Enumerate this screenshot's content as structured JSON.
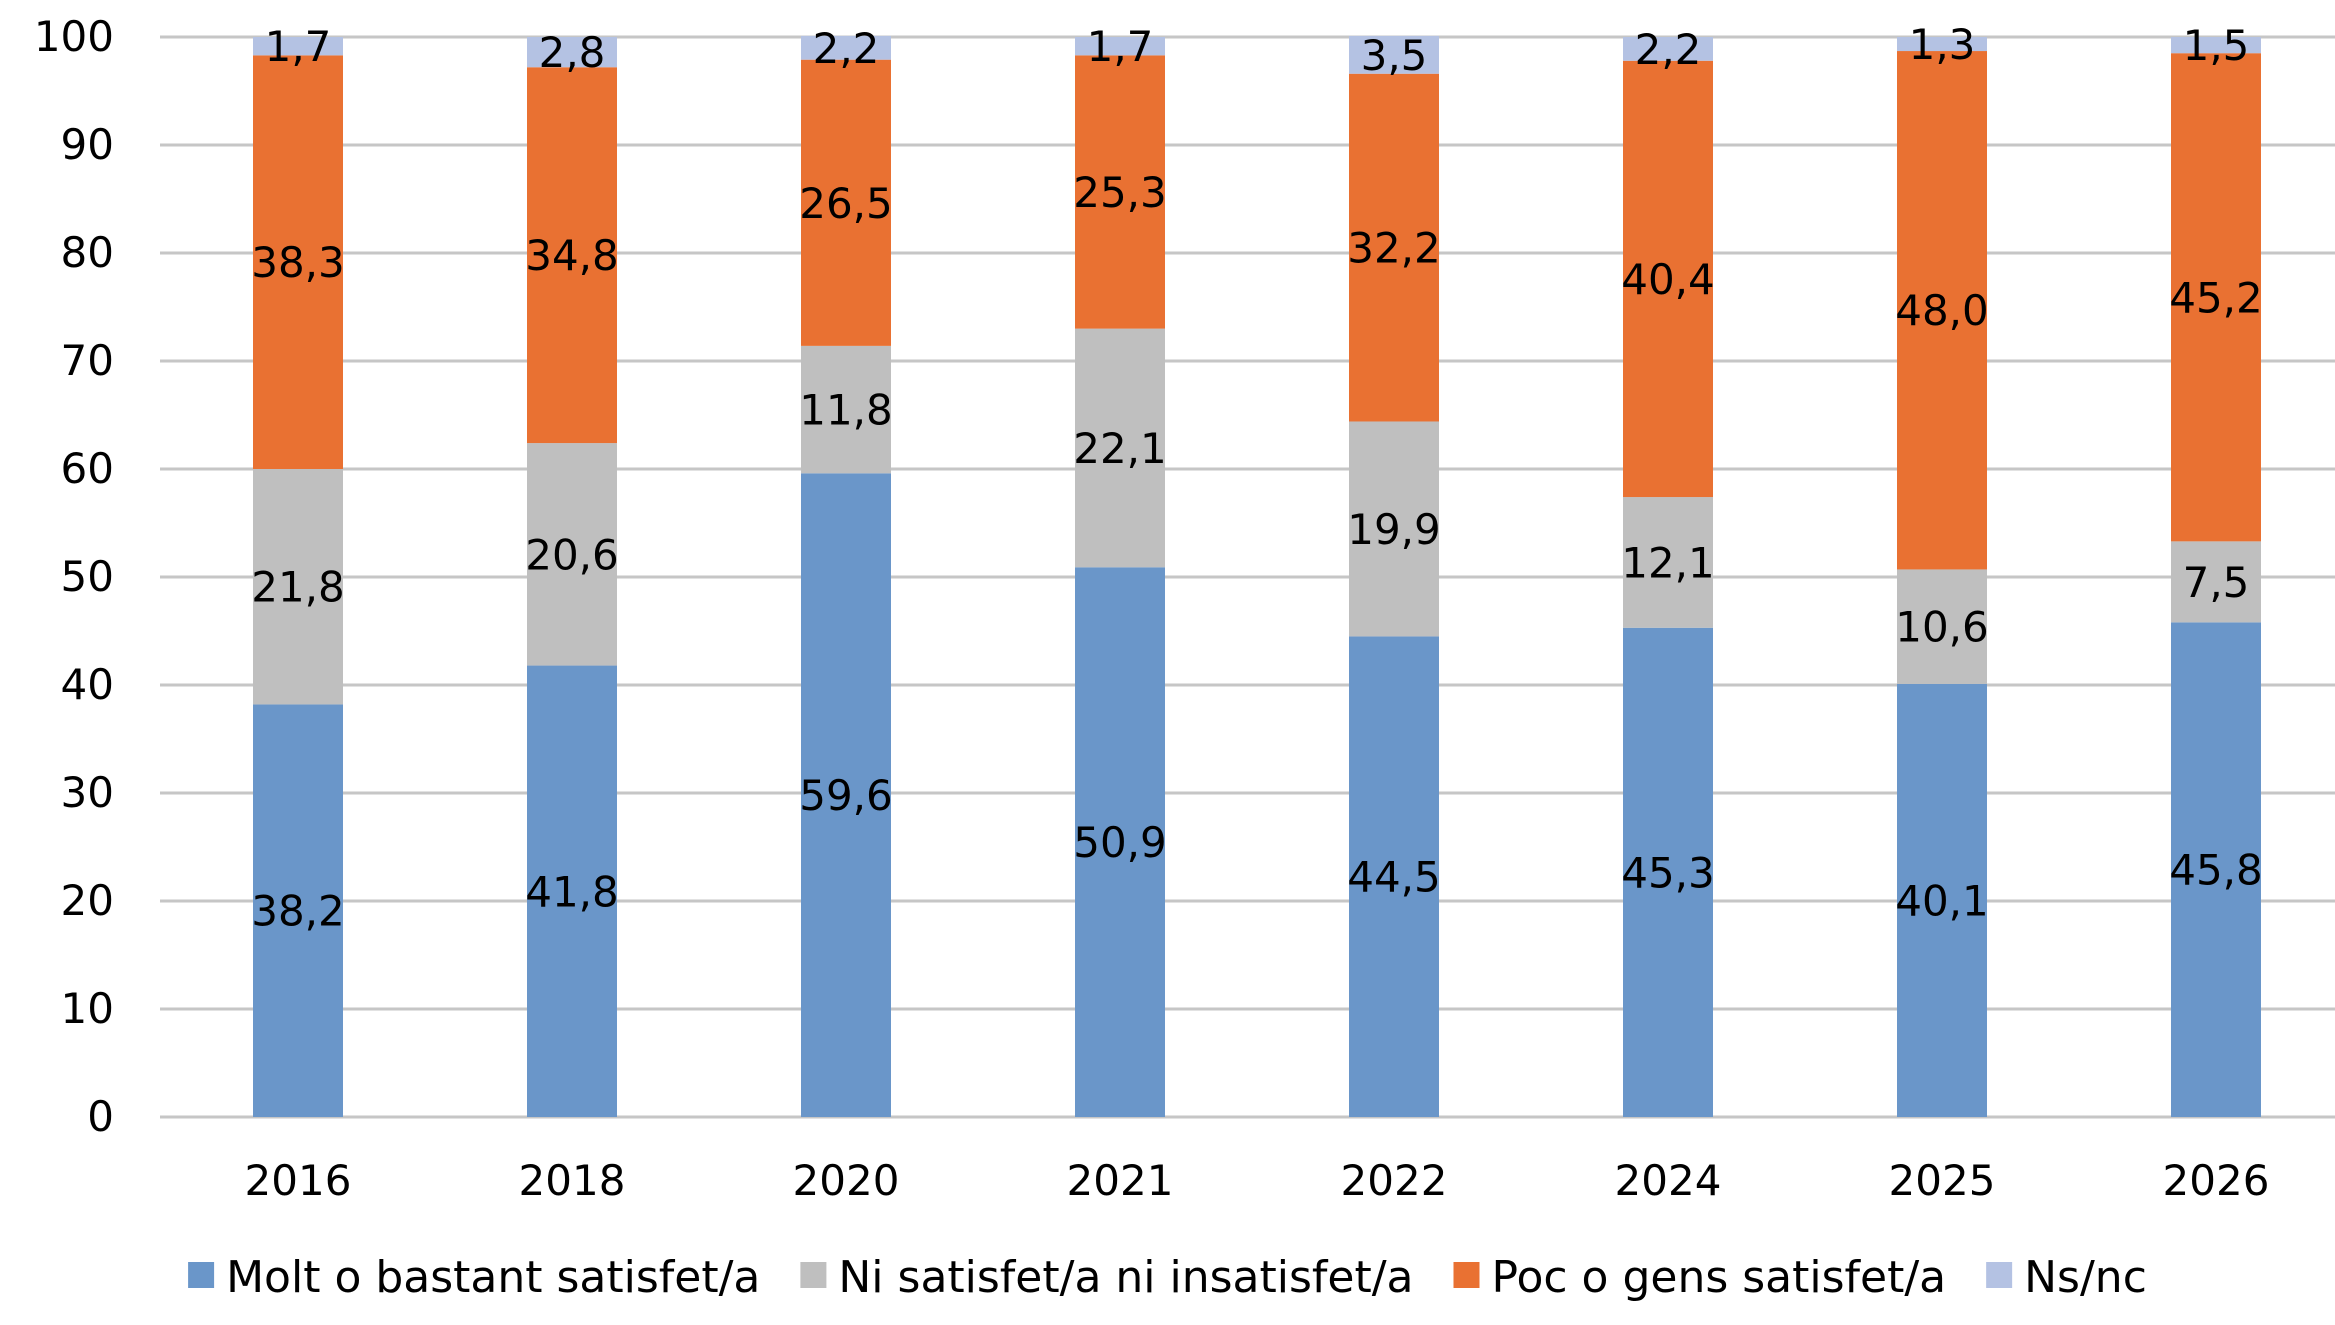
{
  "chart_data": {
    "type": "bar",
    "stacked": true,
    "categories": [
      "2016",
      "2018",
      "2020",
      "2021",
      "2022",
      "2024",
      "2025",
      "2026"
    ],
    "series": [
      {
        "name": "Molt o bastant satisfet/a",
        "color": "#6a96c9",
        "values": [
          38.2,
          41.8,
          59.6,
          50.9,
          44.5,
          45.3,
          40.1,
          45.8
        ],
        "labels": [
          "38,2",
          "41,8",
          "59,6",
          "50,9",
          "44,5",
          "45,3",
          "40,1",
          "45,8"
        ]
      },
      {
        "name": "Ni satisfet/a ni insatisfet/a",
        "color": "#bfbfbf",
        "values": [
          21.8,
          20.6,
          11.8,
          22.1,
          19.9,
          12.1,
          10.6,
          7.5
        ],
        "labels": [
          "21,8",
          "20,6",
          "11,8",
          "22,1",
          "19,9",
          "12,1",
          "10,6",
          "7,5"
        ]
      },
      {
        "name": "Poc o gens satisfet/a",
        "color": "#e97132",
        "values": [
          38.3,
          34.8,
          26.5,
          25.3,
          32.2,
          40.4,
          48.0,
          45.2
        ],
        "labels": [
          "38,3",
          "34,8",
          "26,5",
          "25,3",
          "32,2",
          "40,4",
          "48,0",
          "45,2"
        ]
      },
      {
        "name": "Ns/nc",
        "color": "#b4c2e3",
        "values": [
          1.7,
          2.8,
          2.2,
          1.7,
          3.5,
          2.2,
          1.3,
          1.5
        ],
        "labels": [
          "1,7",
          "2,8",
          "2,2",
          "1,7",
          "3,5",
          "2,2",
          "1,3",
          "1,5"
        ]
      }
    ],
    "ylim": [
      0,
      100
    ],
    "yticks": [
      "0",
      "10",
      "20",
      "30",
      "40",
      "50",
      "60",
      "70",
      "80",
      "90",
      "100"
    ],
    "grid": true,
    "legend": "bottom",
    "title": "",
    "xlabel": "",
    "ylabel": ""
  }
}
